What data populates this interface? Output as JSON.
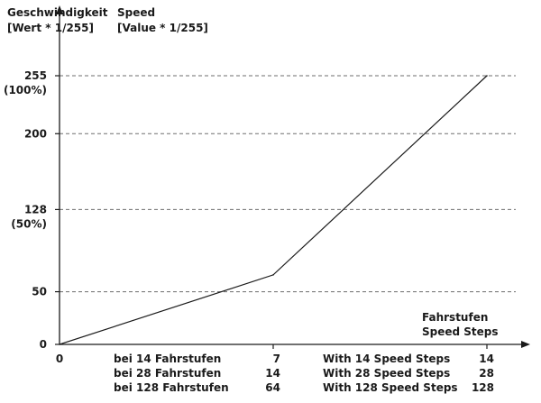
{
  "chart_data": {
    "type": "line",
    "title": "",
    "ylabel_lines_de": [
      "Geschwindigkeit",
      "[Wert * 1/255]"
    ],
    "ylabel_lines_en": [
      "Speed",
      "[Value * 1/255]"
    ],
    "xlabel_lines": [
      "Fahrstufen",
      "Speed Steps"
    ],
    "ylim": [
      0,
      255
    ],
    "xlim": [
      0,
      1
    ],
    "grid": "dashed horizontal",
    "yticks": [
      {
        "value": 0,
        "label": "0",
        "sublabel": ""
      },
      {
        "value": 50,
        "label": "50",
        "sublabel": ""
      },
      {
        "value": 128,
        "label": "128",
        "sublabel": "(50%)"
      },
      {
        "value": 200,
        "label": "200",
        "sublabel": ""
      },
      {
        "value": 255,
        "label": "255",
        "sublabel": "(100%)"
      }
    ],
    "xticks": [
      {
        "value": 0,
        "labels": [
          "0"
        ]
      },
      {
        "value": 0.5,
        "labels": [
          "7",
          "14",
          "64"
        ]
      },
      {
        "value": 1,
        "labels": [
          "14",
          "28",
          "128"
        ]
      }
    ],
    "x_groups_de": [
      "bei 14 Fahrstufen",
      "bei 28 Fahrstufen",
      "bei 128 Fahrstufen"
    ],
    "x_groups_en": [
      "With 14 Speed Steps",
      "With 28 Speed Steps",
      "With 128 Speed Steps"
    ],
    "series": [
      {
        "points": [
          [
            0,
            0
          ],
          [
            0.5,
            66
          ],
          [
            1,
            255
          ]
        ]
      }
    ]
  }
}
